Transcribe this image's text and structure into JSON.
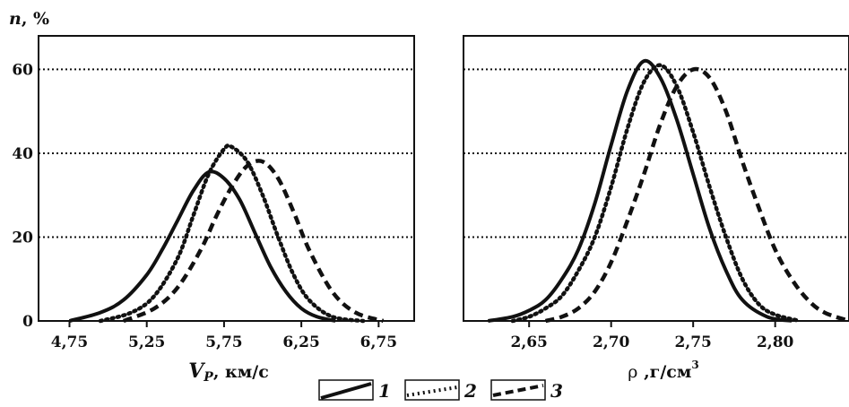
{
  "colors": {
    "ink": "#111111",
    "background": "#ffffff"
  },
  "y_axis_label": {
    "var": "n",
    "unit": ", %"
  },
  "legend": [
    {
      "label": "1",
      "style": "solid"
    },
    {
      "label": "2",
      "style": "dotted"
    },
    {
      "label": "3",
      "style": "dashed"
    }
  ],
  "chart_data": [
    {
      "type": "line",
      "title": "",
      "xlabel_var": "V",
      "xlabel_sub": "P",
      "xlabel_unit": ", км/с",
      "ylabel": "n, %",
      "x_ticks": [
        4.75,
        5.25,
        5.75,
        6.25,
        6.75
      ],
      "x_tick_labels": [
        "4,75",
        "5,25",
        "5,75",
        "6,25",
        "6,75"
      ],
      "y_ticks": [
        0,
        20,
        40,
        60
      ],
      "y_tick_labels": [
        "0",
        "20",
        "40",
        "60"
      ],
      "xlim": [
        4.55,
        6.98
      ],
      "ylim": [
        0,
        68
      ],
      "grid": "horizontal dotted at 20, 40, 60",
      "series": [
        {
          "name": "1",
          "style": "solid",
          "x": [
            4.75,
            4.95,
            5.1,
            5.25,
            5.35,
            5.45,
            5.55,
            5.65,
            5.75,
            5.85,
            5.95,
            6.05,
            6.15,
            6.25,
            6.35,
            6.47
          ],
          "y": [
            0,
            2,
            5,
            11,
            17,
            24,
            31,
            35.5,
            34,
            29,
            21,
            13,
            7,
            3,
            1,
            0
          ]
        },
        {
          "name": "2",
          "style": "dotted",
          "x": [
            4.95,
            5.15,
            5.3,
            5.45,
            5.55,
            5.65,
            5.75,
            5.8,
            5.9,
            6.0,
            6.1,
            6.2,
            6.3,
            6.45,
            6.65
          ],
          "y": [
            0,
            2,
            6,
            15,
            25,
            35,
            41,
            41.5,
            38,
            30,
            20,
            11,
            5,
            1,
            0
          ]
        },
        {
          "name": "3",
          "style": "dashed",
          "x": [
            5.1,
            5.3,
            5.45,
            5.6,
            5.7,
            5.8,
            5.9,
            6.0,
            6.1,
            6.2,
            6.3,
            6.45,
            6.6,
            6.78
          ],
          "y": [
            0,
            3,
            8,
            17,
            25,
            32,
            37,
            38,
            34,
            26,
            17,
            7,
            2,
            0
          ]
        }
      ]
    },
    {
      "type": "line",
      "title": "",
      "xlabel_var": "ρ",
      "xlabel_unit": " ,г/см",
      "xlabel_sup": "3",
      "x_ticks": [
        2.65,
        2.7,
        2.75,
        2.8
      ],
      "x_tick_labels": [
        "2,65",
        "2,70",
        "2,75",
        "2,80"
      ],
      "y_ticks": [
        0,
        20,
        40,
        60
      ],
      "xlim": [
        2.61,
        2.845
      ],
      "ylim": [
        0,
        68
      ],
      "grid": "horizontal dotted at 20, 40, 60",
      "series": [
        {
          "name": "1",
          "style": "solid",
          "x": [
            2.625,
            2.64,
            2.65,
            2.66,
            2.67,
            2.68,
            2.69,
            2.7,
            2.71,
            2.72,
            2.73,
            2.74,
            2.75,
            2.76,
            2.77,
            2.78,
            2.795,
            2.81
          ],
          "y": [
            0,
            1,
            2.5,
            5,
            10,
            17,
            28,
            42,
            55,
            62,
            58,
            48,
            35,
            22,
            12,
            5,
            1,
            0
          ]
        },
        {
          "name": "2",
          "style": "dotted",
          "x": [
            2.64,
            2.65,
            2.66,
            2.67,
            2.68,
            2.69,
            2.7,
            2.71,
            2.72,
            2.73,
            2.74,
            2.75,
            2.76,
            2.77,
            2.78,
            2.79,
            2.8,
            2.815
          ],
          "y": [
            0,
            1,
            3,
            6,
            12,
            20,
            32,
            46,
            57,
            61,
            56,
            45,
            32,
            20,
            10,
            4,
            1.5,
            0
          ]
        },
        {
          "name": "3",
          "style": "dashed",
          "x": [
            2.66,
            2.67,
            2.68,
            2.69,
            2.7,
            2.71,
            2.72,
            2.73,
            2.74,
            2.75,
            2.76,
            2.77,
            2.78,
            2.79,
            2.8,
            2.81,
            2.82,
            2.83,
            2.845
          ],
          "y": [
            0,
            1,
            3,
            7,
            14,
            24,
            35,
            47,
            56,
            60,
            58,
            50,
            38,
            27,
            17,
            10,
            5,
            2,
            0
          ]
        }
      ]
    }
  ]
}
